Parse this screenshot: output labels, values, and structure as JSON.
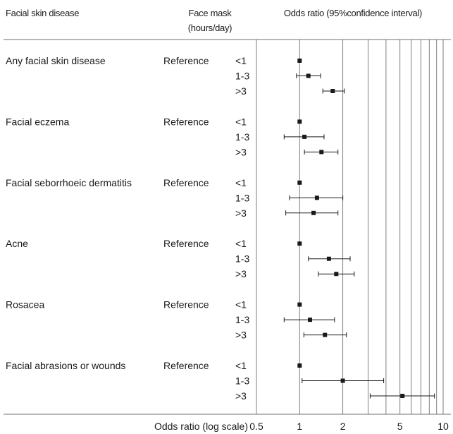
{
  "chart_data": {
    "type": "forest",
    "headers": {
      "disease": "Facial skin disease",
      "mask_line1": "Face mask",
      "mask_line2": "(hours/day)",
      "ci": "Odds ratio (95%confidence interval)"
    },
    "xlabel": "Odds ratio (log scale)",
    "x_scale": "log",
    "xlim": [
      0.5,
      10
    ],
    "x_ticks": [
      0.5,
      1,
      2,
      5,
      10
    ],
    "x_tick_labels": [
      "0.5",
      "1",
      "2",
      "5",
      "10"
    ],
    "gridlines": [
      0.5,
      1,
      2,
      3,
      4,
      5,
      6,
      7,
      8,
      9,
      10
    ],
    "reference_label": "Reference",
    "groups": [
      {
        "name": "Any facial skin disease",
        "rows": [
          {
            "exposure": "<1",
            "or": 1.0,
            "lo": 1.0,
            "hi": 1.0
          },
          {
            "exposure": "1-3",
            "or": 1.15,
            "lo": 0.95,
            "hi": 1.4
          },
          {
            "exposure": ">3",
            "or": 1.7,
            "lo": 1.45,
            "hi": 2.05
          }
        ]
      },
      {
        "name": "Facial eczema",
        "rows": [
          {
            "exposure": "<1",
            "or": 1.0,
            "lo": 1.0,
            "hi": 1.0
          },
          {
            "exposure": "1-3",
            "or": 1.08,
            "lo": 0.78,
            "hi": 1.48
          },
          {
            "exposure": ">3",
            "or": 1.42,
            "lo": 1.08,
            "hi": 1.85
          }
        ]
      },
      {
        "name": "Facial seborrhoeic dermatitis",
        "rows": [
          {
            "exposure": "<1",
            "or": 1.0,
            "lo": 1.0,
            "hi": 1.0
          },
          {
            "exposure": "1-3",
            "or": 1.32,
            "lo": 0.85,
            "hi": 2.0
          },
          {
            "exposure": ">3",
            "or": 1.25,
            "lo": 0.8,
            "hi": 1.85
          }
        ]
      },
      {
        "name": "Acne",
        "rows": [
          {
            "exposure": "<1",
            "or": 1.0,
            "lo": 1.0,
            "hi": 1.0
          },
          {
            "exposure": "1-3",
            "or": 1.6,
            "lo": 1.15,
            "hi": 2.25
          },
          {
            "exposure": ">3",
            "or": 1.8,
            "lo": 1.35,
            "hi": 2.4
          }
        ]
      },
      {
        "name": "Rosacea",
        "rows": [
          {
            "exposure": "<1",
            "or": 1.0,
            "lo": 1.0,
            "hi": 1.0
          },
          {
            "exposure": "1-3",
            "or": 1.18,
            "lo": 0.78,
            "hi": 1.75
          },
          {
            "exposure": ">3",
            "or": 1.5,
            "lo": 1.07,
            "hi": 2.12
          }
        ]
      },
      {
        "name": "Facial abrasions or wounds",
        "rows": [
          {
            "exposure": "<1",
            "or": 1.0,
            "lo": 1.0,
            "hi": 1.0
          },
          {
            "exposure": "1-3",
            "or": 2.0,
            "lo": 1.04,
            "hi": 3.85
          },
          {
            "exposure": ">3",
            "or": 5.2,
            "lo": 3.1,
            "hi": 8.7
          }
        ]
      }
    ]
  }
}
